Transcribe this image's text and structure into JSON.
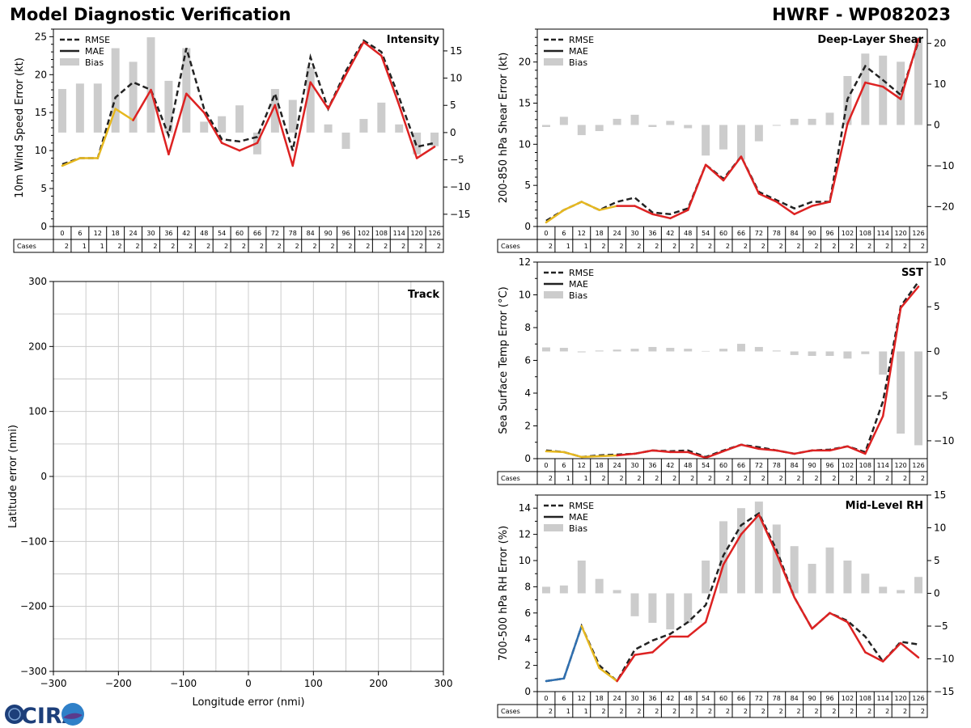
{
  "header": {
    "title": "Model Diagnostic Verification",
    "model_storm": "HWRF - WP082023"
  },
  "logo": {
    "text": "CIRA"
  },
  "colors": {
    "rmse": "#222222",
    "bias": "#cccccc",
    "mae_red": "#dd2222",
    "mae_yellow": "#e6b820",
    "mae_blue": "#3070b0",
    "grid": "#cccccc"
  },
  "legend": {
    "rmse": "RMSE",
    "mae": "MAE",
    "bias": "Bias"
  },
  "cases_label": "Cases",
  "chart_data": [
    {
      "id": "intensity",
      "type": "line+bar",
      "title": "Intensity",
      "ylabel": "10m Wind Speed Error (kt)",
      "ylim": [
        0,
        26
      ],
      "yticks": [
        0,
        5,
        10,
        15,
        20,
        25
      ],
      "y2lim": [
        -17.25,
        19
      ],
      "y2ticks": [
        -15,
        -10,
        -5,
        0,
        5,
        10,
        15
      ],
      "x": [
        0,
        6,
        12,
        18,
        24,
        30,
        36,
        42,
        48,
        54,
        60,
        66,
        72,
        78,
        84,
        90,
        96,
        102,
        108,
        114,
        120,
        126
      ],
      "cases": [
        2,
        1,
        1,
        2,
        2,
        2,
        2,
        2,
        2,
        2,
        2,
        2,
        2,
        2,
        2,
        2,
        2,
        2,
        2,
        2,
        2,
        2
      ],
      "rmse": [
        8.2,
        9,
        9,
        17,
        19,
        18,
        12,
        23.5,
        15.5,
        11.5,
        11.2,
        11.8,
        17.5,
        10,
        22.3,
        15.5,
        20.5,
        24.5,
        23,
        17,
        10.5,
        11
      ],
      "mae": [
        8,
        9,
        9,
        15.5,
        14,
        18,
        9.5,
        17.5,
        15,
        11,
        10,
        11,
        16,
        8,
        19,
        15.5,
        20,
        24.3,
        22.5,
        16,
        9,
        10.5
      ],
      "mae_colors": [
        "blue",
        "yellow",
        "yellow",
        "yellow",
        "yellow",
        "red",
        "red",
        "red",
        "red",
        "red",
        "red",
        "red",
        "red",
        "red",
        "red",
        "red",
        "red",
        "red",
        "red",
        "red",
        "red",
        "red"
      ],
      "bias": [
        8,
        9,
        9,
        15.5,
        13,
        17.5,
        9.5,
        15.5,
        2,
        3,
        5,
        -4,
        8,
        6,
        12,
        1.5,
        -3,
        2.5,
        5.5,
        1.5,
        -4,
        -2.5
      ]
    },
    {
      "id": "shear",
      "type": "line+bar",
      "title": "Deep-Layer Shear",
      "ylabel": "200-850 hPa Shear Error (kt)",
      "ylim": [
        0,
        24
      ],
      "yticks": [
        0,
        5,
        10,
        15,
        20
      ],
      "y2lim": [
        -24.9,
        23.5
      ],
      "y2ticks": [
        -20,
        -10,
        0,
        10,
        20
      ],
      "x": [
        0,
        6,
        12,
        18,
        24,
        30,
        36,
        42,
        48,
        54,
        60,
        66,
        72,
        78,
        84,
        90,
        96,
        102,
        108,
        114,
        120,
        126
      ],
      "cases": [
        2,
        1,
        1,
        2,
        2,
        2,
        2,
        2,
        2,
        2,
        2,
        2,
        2,
        2,
        2,
        2,
        2,
        2,
        2,
        2,
        2,
        2
      ],
      "rmse": [
        0.7,
        2,
        3,
        2,
        3,
        3.5,
        1.7,
        1.5,
        2.2,
        7.5,
        5.8,
        8.5,
        4.2,
        3.2,
        2.2,
        3,
        3,
        15.5,
        19.5,
        17.8,
        16,
        22.5
      ],
      "mae": [
        0.5,
        2,
        3,
        2,
        2.5,
        2.5,
        1.5,
        1,
        2,
        7.5,
        5.6,
        8.5,
        4,
        3,
        1.5,
        2.5,
        3,
        12.5,
        17.5,
        17,
        15.5,
        22.8
      ],
      "mae_colors": [
        "blue",
        "yellow",
        "yellow",
        "yellow",
        "yellow",
        "red",
        "red",
        "red",
        "red",
        "red",
        "red",
        "red",
        "red",
        "red",
        "red",
        "red",
        "red",
        "red",
        "red",
        "red",
        "red",
        "red"
      ],
      "bias": [
        -0.5,
        2,
        -2.5,
        -1.5,
        1.5,
        2.5,
        -0.5,
        1,
        -0.8,
        -7.5,
        -6,
        -8.5,
        -4,
        -0.2,
        1.5,
        1.5,
        3,
        12,
        17.5,
        17,
        15.5,
        21.5
      ]
    },
    {
      "id": "sst",
      "type": "line+bar",
      "title": "SST",
      "ylabel": "Sea Surface Temp Error (°C)",
      "ylim": [
        0,
        12
      ],
      "yticks": [
        0,
        2,
        4,
        6,
        8,
        10,
        12
      ],
      "y2lim": [
        -12,
        10
      ],
      "y2ticks": [
        -10,
        -5,
        0,
        5,
        10
      ],
      "x": [
        0,
        6,
        12,
        18,
        24,
        30,
        36,
        42,
        48,
        54,
        60,
        66,
        72,
        78,
        84,
        90,
        96,
        102,
        108,
        114,
        120,
        126
      ],
      "cases": [
        2,
        1,
        1,
        2,
        2,
        2,
        2,
        2,
        2,
        2,
        2,
        2,
        2,
        2,
        2,
        2,
        2,
        2,
        2,
        2,
        2,
        2
      ],
      "rmse": [
        0.5,
        0.4,
        0.1,
        0.2,
        0.25,
        0.3,
        0.5,
        0.45,
        0.5,
        0.1,
        0.5,
        0.85,
        0.7,
        0.5,
        0.3,
        0.5,
        0.55,
        0.75,
        0.4,
        3.5,
        9.3,
        10.8
      ],
      "mae": [
        0.45,
        0.4,
        0.1,
        0.15,
        0.2,
        0.3,
        0.5,
        0.4,
        0.4,
        0.05,
        0.45,
        0.85,
        0.6,
        0.5,
        0.3,
        0.5,
        0.5,
        0.75,
        0.3,
        2.6,
        9.2,
        10.5
      ],
      "mae_colors": [
        "blue",
        "yellow",
        "yellow",
        "yellow",
        "yellow",
        "red",
        "red",
        "red",
        "red",
        "red",
        "red",
        "red",
        "red",
        "red",
        "red",
        "red",
        "red",
        "red",
        "red",
        "red",
        "red",
        "red"
      ],
      "bias": [
        0.45,
        0.4,
        -0.1,
        0.1,
        0.2,
        0.3,
        0.5,
        0.4,
        0.3,
        0.05,
        0.3,
        0.85,
        0.5,
        0.1,
        -0.4,
        -0.5,
        -0.5,
        -0.8,
        -0.3,
        -2.6,
        -9.2,
        -10.5
      ]
    },
    {
      "id": "rh",
      "type": "line+bar",
      "title": "Mid-Level RH",
      "ylabel": "700-500 hPa RH Error (%)",
      "ylim": [
        0,
        15
      ],
      "yticks": [
        0,
        2,
        4,
        6,
        8,
        10,
        12,
        14
      ],
      "y2lim": [
        -15,
        15
      ],
      "y2ticks": [
        -15,
        -10,
        -5,
        0,
        5,
        10,
        15
      ],
      "x": [
        0,
        6,
        12,
        18,
        24,
        30,
        36,
        42,
        48,
        54,
        60,
        66,
        72,
        78,
        84,
        90,
        96,
        102,
        108,
        114,
        120,
        126
      ],
      "cases": [
        2,
        1,
        1,
        2,
        2,
        2,
        2,
        2,
        2,
        2,
        2,
        2,
        2,
        2,
        2,
        2,
        2,
        2,
        2,
        2,
        2,
        2
      ],
      "rmse": [
        0.8,
        1,
        5,
        2,
        0.8,
        3.2,
        3.9,
        4.4,
        5.3,
        6.6,
        10.4,
        12.7,
        13.6,
        10.8,
        7.2,
        4.8,
        6,
        5.4,
        4.2,
        2.3,
        3.8,
        3.6
      ],
      "mae": [
        0.8,
        1,
        5,
        1.8,
        0.8,
        2.8,
        3,
        4.2,
        4.2,
        5.3,
        9.7,
        12,
        13.5,
        10.5,
        7.2,
        4.8,
        6,
        5.3,
        3,
        2.3,
        3.7,
        2.6
      ],
      "mae_colors": [
        "blue",
        "blue",
        "blue",
        "yellow",
        "yellow",
        "red",
        "red",
        "red",
        "red",
        "red",
        "red",
        "red",
        "red",
        "red",
        "red",
        "red",
        "red",
        "red",
        "red",
        "red",
        "red",
        "red"
      ],
      "bias": [
        1,
        1.2,
        5,
        2.2,
        0.5,
        -3.5,
        -4.5,
        -5.5,
        -4.5,
        5,
        11,
        13,
        14,
        10.5,
        7.2,
        4.5,
        7,
        5,
        3,
        1,
        0.5,
        2.5
      ]
    },
    {
      "id": "track",
      "type": "scatter",
      "title": "Track",
      "xlabel": "Longitude error (nmi)",
      "ylabel": "Latitude error (nmi)",
      "xlim": [
        -300,
        300
      ],
      "ylim": [
        -300,
        300
      ],
      "xticks": [
        -300,
        -200,
        -100,
        0,
        100,
        200,
        300
      ],
      "yticks": [
        -300,
        -200,
        -100,
        0,
        100,
        200,
        300
      ],
      "grid": true,
      "points": []
    }
  ]
}
